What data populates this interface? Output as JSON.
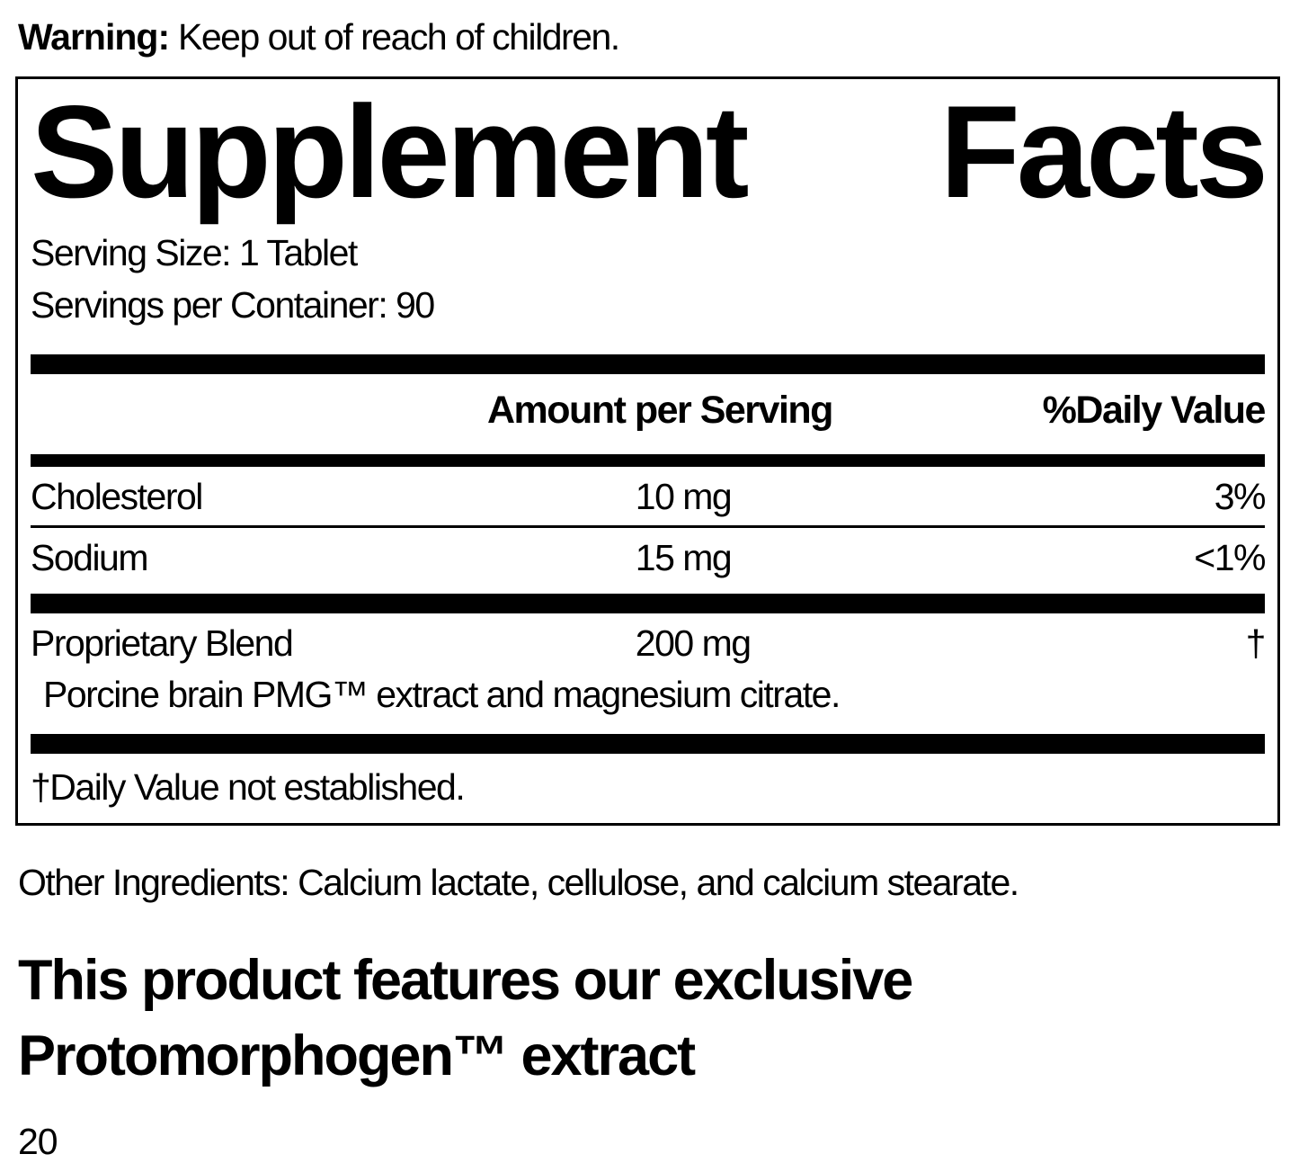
{
  "warning": {
    "label": "Warning:",
    "text": " Keep out of reach of children."
  },
  "panel": {
    "title_word1": "Supplement",
    "title_word2": "Facts",
    "serving_size": "Serving Size: 1 Tablet",
    "servings_per_container": "Servings per Container: 90",
    "columns": {
      "amount": "Amount per Serving",
      "daily_value": "%Daily Value"
    },
    "rows": [
      {
        "name": "Cholesterol",
        "amount": "10 mg",
        "dv": "3%"
      },
      {
        "name": "Sodium",
        "amount": "15 mg",
        "dv": "<1%"
      }
    ],
    "blend": {
      "name": "Proprietary Blend",
      "amount": "200 mg",
      "dv": "†",
      "description": "Porcine brain PMG™ extract and magnesium citrate."
    },
    "footnote": "†Daily Value not established."
  },
  "other_ingredients": "Other Ingredients: Calcium lactate, cellulose, and calcium stearate.",
  "feature_heading": "This product features our exclusive Protomorphogen™ extract",
  "page_number": "20",
  "colors": {
    "ink": "#000000",
    "background": "#ffffff"
  }
}
